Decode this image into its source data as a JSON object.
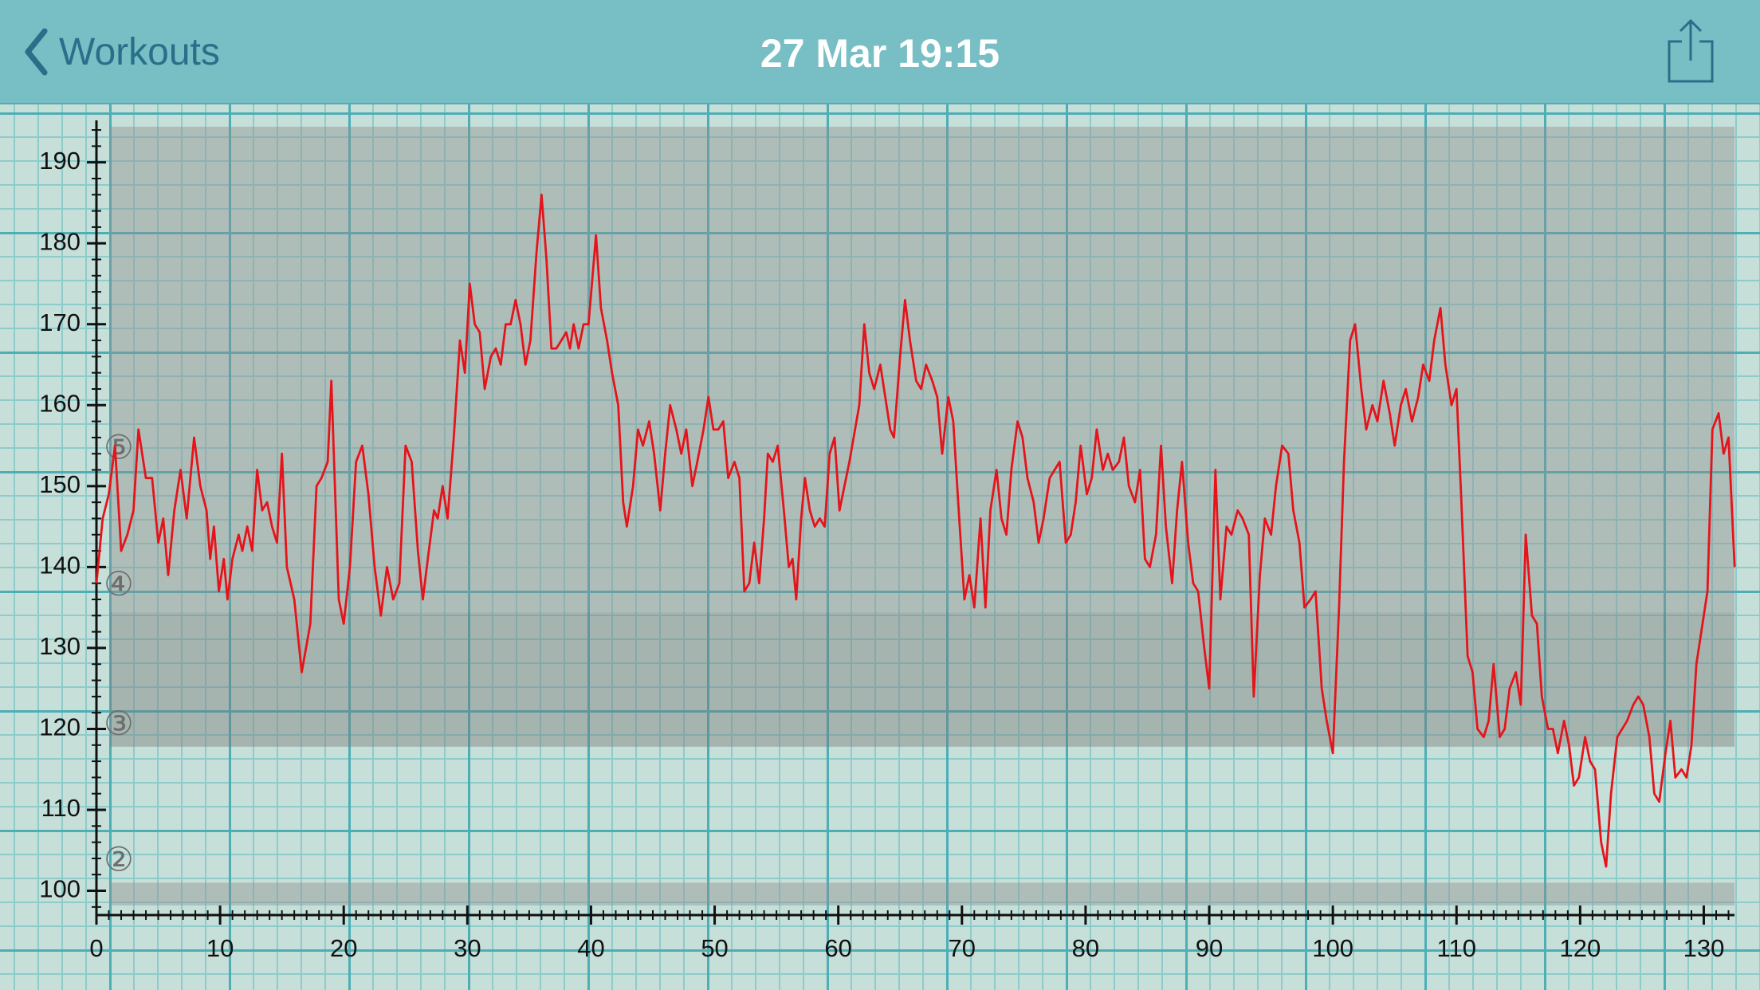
{
  "header": {
    "back_label": "Workouts",
    "title": "27 Mar 19:15"
  },
  "chart_data": {
    "type": "line",
    "color": "#e5141b",
    "x": [
      0,
      0.5,
      1,
      1.5,
      2,
      2.5,
      3,
      3.4,
      4,
      4.5,
      5,
      5.4,
      5.8,
      6.3,
      6.8,
      7.3,
      7.9,
      8.4,
      8.9,
      9.2,
      9.5,
      9.9,
      10.3,
      10.6,
      11,
      11.5,
      11.8,
      12.2,
      12.6,
      13,
      13.4,
      13.8,
      14.2,
      14.6,
      15,
      15.4,
      16,
      16.6,
      17.3,
      17.8,
      18.2,
      18.7,
      19,
      19.6,
      20,
      20.5,
      21,
      21.5,
      22,
      22.5,
      23,
      23.5,
      24,
      24.5,
      25,
      25.5,
      26,
      26.4,
      26.8,
      27.3,
      27.6,
      28,
      28.4,
      28.9,
      29.4,
      29.8,
      30.2,
      30.6,
      31,
      31.4,
      31.9,
      32.3,
      32.7,
      33.1,
      33.5,
      33.9,
      34.3,
      34.7,
      35.1,
      35.6,
      36,
      36.4,
      36.8,
      37.2,
      37.6,
      38,
      38.3,
      38.6,
      39,
      39.4,
      39.8,
      40.4,
      40.8,
      41.3,
      41.7,
      42.2,
      42.6,
      42.9,
      43.4,
      43.8,
      44.2,
      44.7,
      45.1,
      45.6,
      46.0,
      46.4,
      46.9,
      47.3,
      47.7,
      48.2,
      48.6,
      49.1,
      49.5,
      49.9,
      50.3,
      50.7,
      51.1,
      51.6,
      52.0,
      52.4,
      52.8,
      53.2,
      53.6,
      54.0,
      54.3,
      54.7,
      55.1,
      55.6,
      56.0,
      56.3,
      56.6,
      57.0,
      57.3,
      57.7,
      58.1,
      58.5,
      58.9,
      59.3,
      59.7,
      60.1,
      60.5,
      60.9,
      61.7,
      62.1,
      62.5,
      62.9,
      63.4,
      63.8,
      64.2,
      64.5,
      65.0,
      65.4,
      65.8,
      66.3,
      66.7,
      67.1,
      67.6,
      68.0,
      68.4,
      68.9,
      69.3,
      69.7,
      70.2,
      70.6,
      71.0,
      71.5,
      71.9,
      72.3,
      72.8,
      73.2,
      73.6,
      74.0,
      74.5,
      74.9,
      75.3,
      75.8,
      76.2,
      76.6,
      77.1,
      77.5,
      77.9,
      78.4,
      78.8,
      79.2,
      79.6,
      80.1,
      80.5,
      80.9,
      81.4,
      81.8,
      82.2,
      82.7,
      83.1,
      83.5,
      84.0,
      84.4,
      84.8,
      85.2,
      85.7,
      86.1,
      86.5,
      87.0,
      87.4,
      87.8,
      88.3,
      88.7,
      89.1,
      89.6,
      90.0,
      90.5,
      90.9,
      91.4,
      91.8,
      92.3,
      92.7,
      93.2,
      93.6,
      94.1,
      94.5,
      95.0,
      95.4,
      95.9,
      96.4,
      96.8,
      97.3,
      97.7,
      98.2,
      98.6,
      99.1,
      99.5,
      100.0,
      100.5,
      100.9,
      101.4,
      101.8,
      102.3,
      102.7,
      103.2,
      103.6,
      104.1,
      104.6,
      105.0,
      105.5,
      105.9,
      106.4,
      106.9,
      107.3,
      107.8,
      108.2,
      108.7,
      109.1,
      109.6,
      110.0,
      110.4,
      110.9,
      111.3,
      111.7,
      112.2,
      112.6,
      113.0,
      113.5,
      113.9,
      114.3,
      114.8,
      115.2,
      115.6,
      116.1,
      116.5,
      116.9,
      117.4,
      117.8,
      118.2,
      118.7,
      119.1,
      119.5,
      119.9,
      120.4,
      120.8,
      121.2,
      121.7,
      122.1,
      122.5,
      123.0,
      123.4,
      123.8,
      124.3,
      124.7,
      125.1,
      125.6,
      126.0,
      126.4,
      126.9,
      127.3,
      127.7,
      128.2,
      128.6,
      129.0,
      129.4,
      129.9,
      130.3,
      130.7,
      131.2,
      131.6,
      132.0,
      132.5
    ],
    "values": [
      138,
      146,
      149,
      155,
      142,
      144,
      147,
      157,
      151,
      151,
      143,
      146,
      139,
      147,
      152,
      146,
      156,
      150,
      147,
      141,
      145,
      137,
      141,
      136,
      141,
      144,
      142,
      145,
      142,
      152,
      147,
      148,
      145,
      143,
      154,
      140,
      136,
      127,
      133,
      150,
      151,
      153,
      163,
      136,
      133,
      140,
      153,
      155,
      149,
      140,
      134,
      140,
      136,
      138,
      155,
      153,
      142,
      136,
      141,
      147,
      146,
      150,
      146,
      156,
      168,
      164,
      175,
      170,
      169,
      162,
      166,
      167,
      165,
      170,
      170,
      173,
      170,
      165,
      168,
      179,
      186,
      178,
      167,
      167,
      168,
      169,
      167,
      170,
      167,
      170,
      170,
      181,
      172,
      168,
      164,
      160,
      148,
      145,
      150,
      157,
      155,
      158,
      154,
      147,
      154,
      160,
      157,
      154,
      157,
      150,
      153,
      157,
      161,
      157,
      157,
      158,
      151,
      153,
      151,
      137,
      138,
      143,
      138,
      146,
      154,
      153,
      155,
      147,
      140,
      141,
      136,
      146,
      151,
      147,
      145,
      146,
      145,
      154,
      156,
      147,
      150,
      153,
      160,
      170,
      164,
      162,
      165,
      161,
      157,
      156,
      166,
      173,
      168,
      163,
      162,
      165,
      163,
      161,
      154,
      161,
      158,
      148,
      136,
      139,
      135,
      146,
      135,
      147,
      152,
      146,
      144,
      152,
      158,
      156,
      151,
      148,
      143,
      146,
      151,
      152,
      153,
      143,
      144,
      148,
      155,
      149,
      151,
      157,
      152,
      154,
      152,
      153,
      156,
      150,
      148,
      152,
      141,
      140,
      144,
      155,
      145,
      138,
      147,
      153,
      143,
      138,
      137,
      130,
      125,
      152,
      136,
      145,
      144,
      147,
      146,
      144,
      124,
      139,
      146,
      144,
      150,
      155,
      154,
      147,
      143,
      135,
      136,
      137,
      125,
      121,
      117,
      135,
      153,
      168,
      170,
      162,
      157,
      160,
      158,
      163,
      159,
      155,
      160,
      162,
      158,
      161,
      165,
      163,
      168,
      172,
      165,
      160,
      162,
      148,
      129,
      127,
      120,
      119,
      121,
      128,
      119,
      120,
      125,
      127,
      123,
      144,
      134,
      133,
      124,
      120,
      120,
      117,
      121,
      118,
      113,
      114,
      119,
      116,
      115,
      106,
      103,
      112,
      119,
      120,
      121,
      123,
      124,
      123,
      119,
      112,
      111,
      117,
      121,
      114,
      115,
      114,
      118,
      128,
      133,
      137,
      157,
      159,
      154,
      156,
      140
    ],
    "xlim": [
      0,
      133
    ],
    "ylim": [
      97,
      194.4
    ],
    "xticks": [
      0,
      10,
      20,
      30,
      40,
      50,
      60,
      70,
      80,
      90,
      100,
      110,
      120,
      130
    ],
    "yticks": [
      100,
      110,
      120,
      130,
      140,
      150,
      160,
      170,
      180,
      190
    ],
    "xminorticks": [
      1,
      2,
      3,
      4,
      5,
      6,
      7,
      8,
      9,
      11,
      12,
      13,
      14,
      15,
      16,
      17,
      18,
      19,
      21,
      22,
      23,
      24,
      25,
      26,
      27,
      28,
      29,
      31,
      32,
      33,
      34,
      35,
      36,
      37,
      38,
      39,
      41,
      42,
      43,
      44,
      45,
      46,
      47,
      48,
      49,
      51,
      52,
      53,
      54,
      55,
      56,
      57,
      58,
      59,
      61,
      62,
      63,
      64,
      65,
      66,
      67,
      68,
      69,
      71,
      72,
      73,
      74,
      75,
      76,
      77,
      78,
      79,
      81,
      82,
      83,
      84,
      85,
      86,
      87,
      88,
      89,
      91,
      92,
      93,
      94,
      95,
      96,
      97,
      98,
      99,
      101,
      102,
      103,
      104,
      105,
      106,
      107,
      108,
      109,
      111,
      112,
      113,
      114,
      115,
      116,
      117,
      118,
      119,
      121,
      122,
      123,
      124,
      125,
      126,
      127,
      128,
      129,
      131,
      132
    ],
    "yminorticks": [
      98,
      102,
      104,
      106,
      108,
      112,
      114,
      116,
      118,
      122,
      124,
      126,
      128,
      132,
      134,
      136,
      138,
      142,
      144,
      146,
      148,
      152,
      154,
      156,
      158,
      162,
      164,
      166,
      168,
      172,
      174,
      176,
      178,
      182,
      184,
      186,
      188,
      192,
      194
    ],
    "bands": [
      {
        "from": 134.4,
        "to": 194.4,
        "color": "#8e8e8e"
      },
      {
        "from": 117.8,
        "to": 134.4,
        "color": "#7a7a7a"
      },
      {
        "from": 98.2,
        "to": 101,
        "color": "#8e8e8e"
      }
    ],
    "zone_labels": [
      {
        "label": "②",
        "value": 103.6
      },
      {
        "label": "③",
        "value": 120.4
      },
      {
        "label": "④",
        "value": 137.6
      },
      {
        "label": "⑤",
        "value": 154.5
      }
    ]
  }
}
